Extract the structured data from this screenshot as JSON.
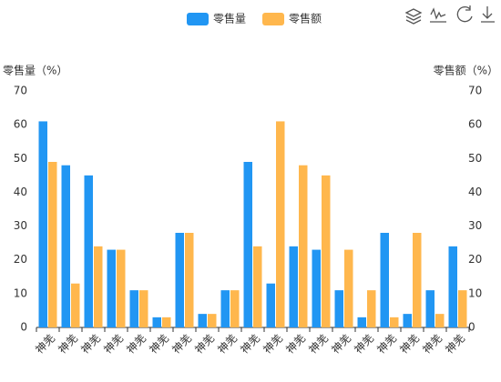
{
  "chart_data": {
    "type": "bar",
    "categories": [
      "神羌",
      "神羌",
      "神羌",
      "神羌",
      "神羌",
      "神羌",
      "神羌",
      "神羌",
      "神羌",
      "神羌",
      "神羌",
      "神羌",
      "神羌",
      "神羌",
      "神羌",
      "神羌",
      "神羌",
      "神羌",
      "神羌"
    ],
    "series": [
      {
        "name": "零售量",
        "color": "#2196f3",
        "values": [
          61,
          48,
          45,
          23,
          11,
          3,
          28,
          4,
          11,
          49,
          13,
          24,
          23,
          11,
          3,
          28,
          4,
          11,
          24
        ]
      },
      {
        "name": "零售额",
        "color": "#ffb74d",
        "axis": "y2",
        "values": [
          49,
          13,
          24,
          23,
          11,
          3,
          28,
          4,
          11,
          24,
          61,
          48,
          45,
          23,
          11,
          3,
          28,
          4,
          11
        ]
      }
    ],
    "y_label": "零售量（%）",
    "y2_label": "零售额（%）",
    "ylim": [
      0,
      70
    ],
    "yticks": [
      0,
      10,
      20,
      30,
      40,
      50,
      60,
      70
    ],
    "y2lim": [
      0,
      70
    ],
    "y2ticks": [
      0,
      10,
      20,
      30,
      40,
      50,
      60,
      70
    ],
    "legend": "top"
  }
}
